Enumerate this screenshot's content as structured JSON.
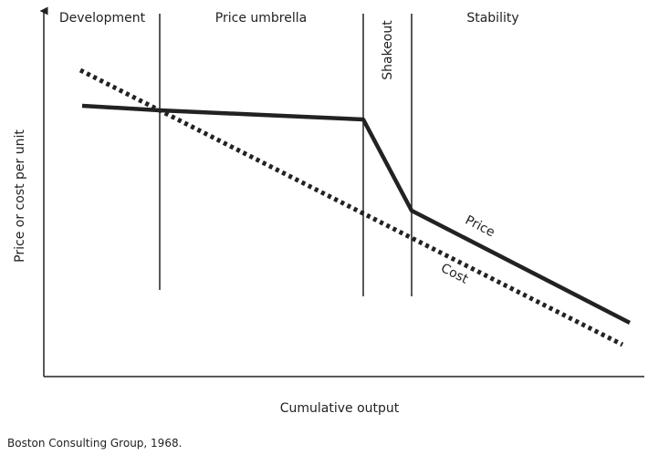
{
  "phases": [
    "Development",
    "Price umbrella",
    "Shakeout",
    "Stability"
  ],
  "axes": {
    "y_label": "Price or cost per unit",
    "x_label": "Cumulative output"
  },
  "lines": {
    "price": "Price",
    "cost": "Cost"
  },
  "source": "Boston Consulting Group, 1968."
}
